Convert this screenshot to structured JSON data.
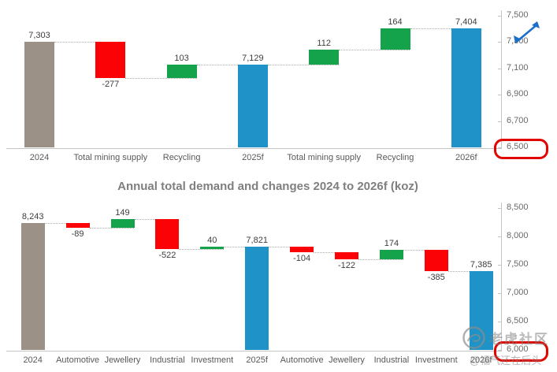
{
  "chart_data": [
    {
      "type": "bar",
      "subtype": "waterfall",
      "title": "",
      "xlabel": "",
      "ylabel": "",
      "unit": "koz",
      "ylim": [
        6500,
        7500
      ],
      "grid": false,
      "axis_side": "right",
      "yticks": [
        7500,
        7300,
        7100,
        6900,
        6700,
        6500
      ],
      "ytick_labels": [
        "7,500",
        "7,300",
        "7,100",
        "6,900",
        "6,700",
        "6,500"
      ],
      "highlighted_ytick": "6,500",
      "categories": [
        "2024",
        "Total mining supply",
        "Recycling",
        "2025f",
        "Total mining supply",
        "Recycling",
        "2026f"
      ],
      "values": [
        7303,
        -277,
        103,
        7129,
        112,
        164,
        7404
      ],
      "value_labels": [
        "7,303",
        "-277",
        "103",
        "7,129",
        "112",
        "164",
        "7,404"
      ],
      "kinds": [
        "total",
        "delta",
        "delta",
        "total",
        "delta",
        "delta",
        "total"
      ],
      "colors": {
        "opening_total": "#9B9186",
        "increase": "#14A24B",
        "decrease": "#FB0306",
        "forecast_total": "#1F93C8"
      }
    },
    {
      "type": "bar",
      "subtype": "waterfall",
      "title": "Annual total demand and changes 2024 to 2026f (koz)",
      "xlabel": "",
      "ylabel": "",
      "unit": "koz",
      "ylim": [
        6000,
        8500
      ],
      "grid": false,
      "axis_side": "right",
      "yticks": [
        8500,
        8000,
        7500,
        7000,
        6500,
        6000
      ],
      "ytick_labels": [
        "8,500",
        "8,000",
        "7,500",
        "7,000",
        "6,500",
        "6,000"
      ],
      "highlighted_ytick": "6,000",
      "categories": [
        "2024",
        "Automotive",
        "Jewellery",
        "Industrial",
        "Investment",
        "2025f",
        "Automotive",
        "Jewellery",
        "Industrial",
        "Investment",
        "2026f"
      ],
      "values": [
        8243,
        -89,
        149,
        -522,
        40,
        7821,
        -104,
        -122,
        174,
        -385,
        7385
      ],
      "value_labels": [
        "8,243",
        "-89",
        "149",
        "-522",
        "40",
        "7,821",
        "-104",
        "-122",
        "174",
        "-385",
        "7,385"
      ],
      "kinds": [
        "total",
        "delta",
        "delta",
        "delta",
        "delta",
        "total",
        "delta",
        "delta",
        "delta",
        "delta",
        "total"
      ],
      "colors": {
        "opening_total": "#9B9186",
        "increase": "#14A24B",
        "decrease": "#FB0306",
        "forecast_total": "#1F93C8"
      }
    }
  ],
  "annotations": {
    "highlight_color": "#e10600",
    "circled_axis_labels": [
      "6,500",
      "6,000"
    ],
    "expand_icon_color": "#1B6FC9"
  },
  "watermark": {
    "community_name": "老虎社区",
    "username": "@福气还在后头"
  }
}
